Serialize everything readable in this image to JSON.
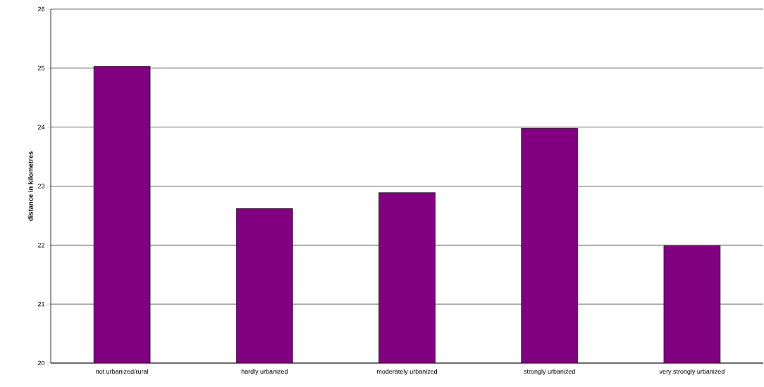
{
  "chart_data": {
    "type": "bar",
    "ylabel": "**distance in kilometres**",
    "categories": [
      "not urbanized/rural",
      "hardly urbanized",
      "moderately urbanized",
      "strongly urbanized",
      "very strongly urbanized"
    ],
    "values": [
      25.03,
      22.62,
      22.89,
      23.98,
      21.99
    ],
    "color": "#800080",
    "ylim": [
      20,
      26
    ],
    "yticks": [
      20,
      21,
      22,
      23,
      24,
      25,
      26
    ],
    "grid": "y"
  }
}
